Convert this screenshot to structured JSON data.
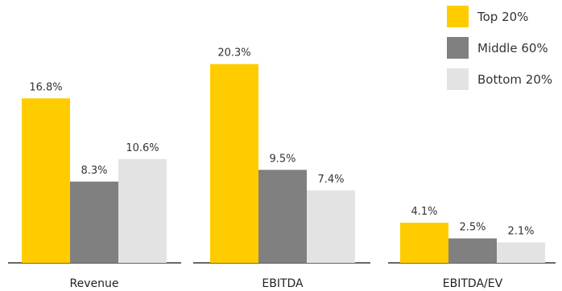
{
  "chart_data": {
    "type": "bar",
    "categories": [
      "Revenue",
      "EBITDA",
      "EBITDA/EV"
    ],
    "series": [
      {
        "name": "Top 20%",
        "color": "#FFCC00",
        "values": [
          16.8,
          20.3,
          4.1
        ],
        "labels": [
          "16.8%",
          "20.3%",
          "4.1%"
        ]
      },
      {
        "name": "Middle 60%",
        "color": "#808080",
        "values": [
          8.3,
          9.5,
          2.5
        ],
        "labels": [
          "8.3%",
          "9.5%",
          "2.5%"
        ]
      },
      {
        "name": "Bottom 20%",
        "color": "#E3E3E3",
        "values": [
          10.6,
          7.4,
          2.1
        ],
        "labels": [
          "10.6%",
          "7.4%",
          "2.1%"
        ]
      }
    ],
    "ylim": [
      0,
      22
    ],
    "grid": false,
    "legend_position": "top-right",
    "separate_axes_per_category": true
  }
}
